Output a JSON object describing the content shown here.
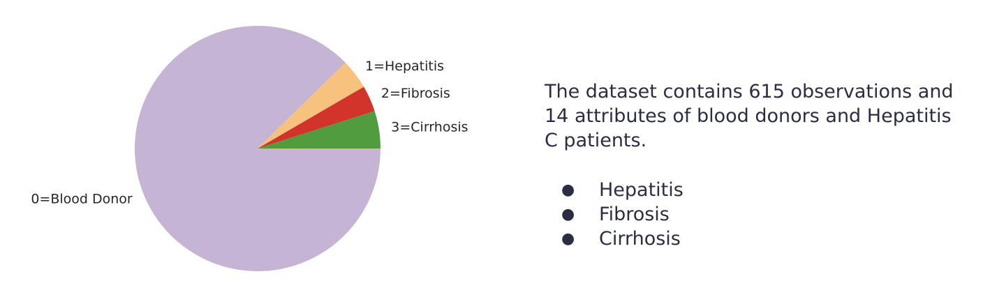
{
  "chart_data": {
    "type": "pie",
    "title": "",
    "slices": [
      {
        "label": "0=Blood Donor",
        "value": 533,
        "color": "#c5b4d4"
      },
      {
        "label": "1=Hepatitis",
        "value": 24,
        "color": "#f7c27e"
      },
      {
        "label": "2=Fibrosis",
        "value": 21,
        "color": "#d2342c"
      },
      {
        "label": "3=Cirrhosis",
        "value": 30,
        "color": "#519c3f"
      }
    ],
    "start_angle_deg": 0,
    "direction": "clockwise",
    "legend": "none"
  },
  "description": {
    "text": "The dataset contains 615 observations and 14 attributes of blood donors and Hepatitis C patients.",
    "bullets": [
      "Hepatitis",
      "Fibrosis",
      "Cirrhosis"
    ],
    "bullet_glyph": "●"
  }
}
